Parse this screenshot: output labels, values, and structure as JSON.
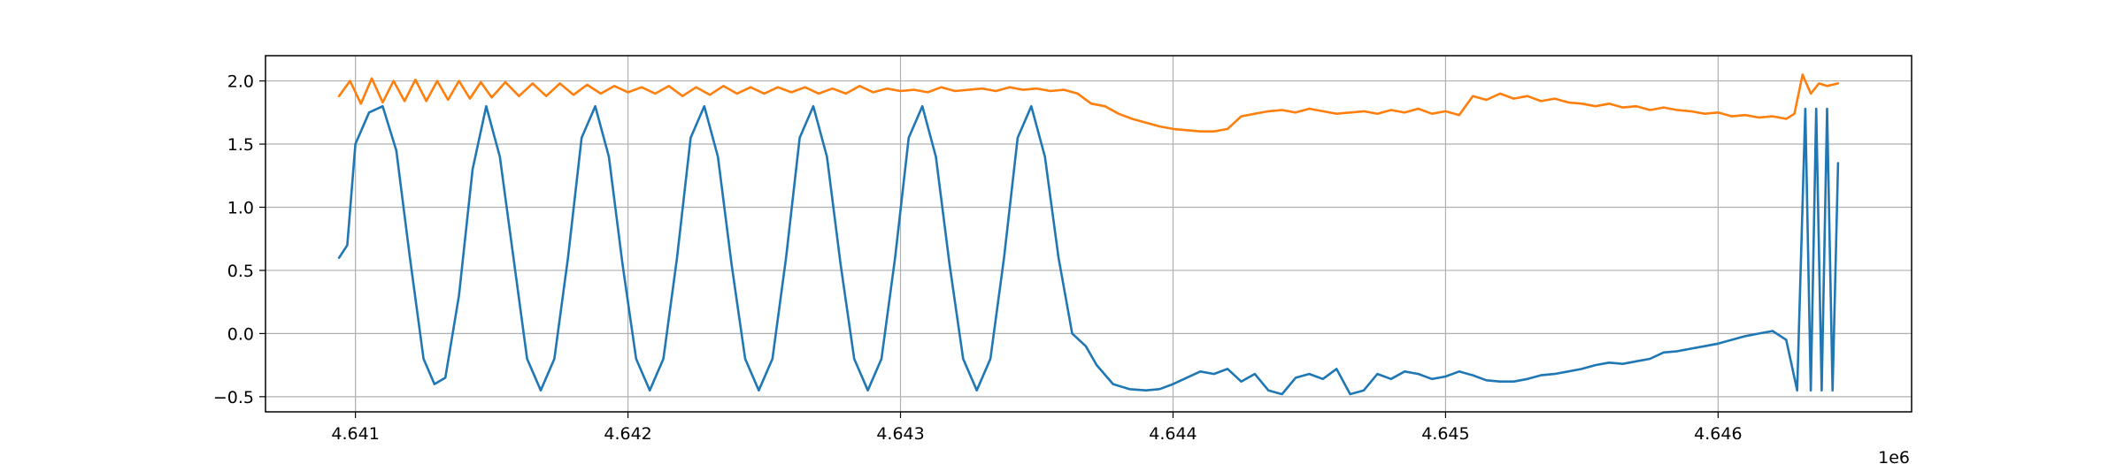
{
  "chart_data": {
    "type": "line",
    "title": "",
    "xlabel": "",
    "ylabel": "",
    "x_offset_text": "1e6",
    "xlim": [
      4640670,
      4646710
    ],
    "ylim": [
      -0.62,
      2.2
    ],
    "grid": true,
    "legend": "none",
    "x_ticks": [
      4641000,
      4642000,
      4643000,
      4644000,
      4645000,
      4646000
    ],
    "x_tick_labels": [
      "4.641",
      "4.642",
      "4.643",
      "4.644",
      "4.645",
      "4.646"
    ],
    "y_ticks": [
      -0.5,
      0.0,
      0.5,
      1.0,
      1.5,
      2.0
    ],
    "y_tick_labels": [
      "−0.5",
      "0.0",
      "0.5",
      "1.0",
      "1.5",
      "2.0"
    ],
    "series": [
      {
        "color": "#1f77b4",
        "x": [
          4640940,
          4640970,
          4641000,
          4641050,
          4641100,
          4641150,
          4641200,
          4641250,
          4641290,
          4641330,
          4641380,
          4641430,
          4641480,
          4641530,
          4641580,
          4641630,
          4641680,
          4641730,
          4641780,
          4641830,
          4641880,
          4641930,
          4641980,
          4642030,
          4642080,
          4642130,
          4642180,
          4642230,
          4642280,
          4642330,
          4642380,
          4642430,
          4642480,
          4642530,
          4642580,
          4642630,
          4642680,
          4642730,
          4642780,
          4642830,
          4642880,
          4642930,
          4642980,
          4643030,
          4643080,
          4643130,
          4643180,
          4643230,
          4643280,
          4643330,
          4643380,
          4643430,
          4643480,
          4643530,
          4643580,
          4643630,
          4643680,
          4643720,
          4643780,
          4643840,
          4643900,
          4643950,
          4644000,
          4644050,
          4644100,
          4644150,
          4644200,
          4644250,
          4644300,
          4644350,
          4644400,
          4644450,
          4644500,
          4644550,
          4644600,
          4644650,
          4644700,
          4644750,
          4644800,
          4644850,
          4644900,
          4644950,
          4645000,
          4645050,
          4645100,
          4645150,
          4645200,
          4645250,
          4645300,
          4645350,
          4645400,
          4645450,
          4645500,
          4645550,
          4645600,
          4645650,
          4645700,
          4645750,
          4645800,
          4645850,
          4645900,
          4645950,
          4646000,
          4646050,
          4646100,
          4646150,
          4646200,
          4646250,
          4646290,
          4646320,
          4646340,
          4646360,
          4646380,
          4646400,
          4646420,
          4646440
        ],
        "values": [
          0.6,
          0.7,
          1.5,
          1.75,
          1.8,
          1.45,
          0.6,
          -0.2,
          -0.4,
          -0.35,
          0.3,
          1.3,
          1.8,
          1.4,
          0.6,
          -0.2,
          -0.45,
          -0.2,
          0.6,
          1.55,
          1.8,
          1.4,
          0.55,
          -0.2,
          -0.45,
          -0.2,
          0.6,
          1.55,
          1.8,
          1.4,
          0.55,
          -0.2,
          -0.45,
          -0.2,
          0.6,
          1.55,
          1.8,
          1.4,
          0.55,
          -0.2,
          -0.45,
          -0.2,
          0.6,
          1.55,
          1.8,
          1.4,
          0.55,
          -0.2,
          -0.45,
          -0.2,
          0.6,
          1.55,
          1.8,
          1.4,
          0.6,
          0.0,
          -0.1,
          -0.25,
          -0.4,
          -0.44,
          -0.45,
          -0.44,
          -0.4,
          -0.35,
          -0.3,
          -0.32,
          -0.28,
          -0.38,
          -0.32,
          -0.45,
          -0.48,
          -0.35,
          -0.32,
          -0.36,
          -0.28,
          -0.48,
          -0.45,
          -0.32,
          -0.36,
          -0.3,
          -0.32,
          -0.36,
          -0.34,
          -0.3,
          -0.33,
          -0.37,
          -0.38,
          -0.38,
          -0.36,
          -0.33,
          -0.32,
          -0.3,
          -0.28,
          -0.25,
          -0.23,
          -0.24,
          -0.22,
          -0.2,
          -0.15,
          -0.14,
          -0.12,
          -0.1,
          -0.08,
          -0.05,
          -0.02,
          0.0,
          0.02,
          -0.05,
          -0.45,
          1.78,
          -0.45,
          1.78,
          -0.45,
          1.78,
          -0.45,
          1.35
        ]
      },
      {
        "color": "#ff7f0e",
        "x": [
          4640940,
          4640980,
          4641020,
          4641060,
          4641100,
          4641140,
          4641180,
          4641220,
          4641260,
          4641300,
          4641340,
          4641380,
          4641420,
          4641460,
          4641500,
          4641550,
          4641600,
          4641650,
          4641700,
          4641750,
          4641800,
          4641850,
          4641900,
          4641950,
          4642000,
          4642050,
          4642100,
          4642150,
          4642200,
          4642250,
          4642300,
          4642350,
          4642400,
          4642450,
          4642500,
          4642550,
          4642600,
          4642650,
          4642700,
          4642750,
          4642800,
          4642850,
          4642900,
          4642950,
          4643000,
          4643050,
          4643100,
          4643150,
          4643200,
          4643250,
          4643300,
          4643350,
          4643400,
          4643450,
          4643500,
          4643550,
          4643600,
          4643650,
          4643700,
          4643750,
          4643800,
          4643850,
          4643900,
          4643950,
          4644000,
          4644050,
          4644100,
          4644150,
          4644200,
          4644250,
          4644300,
          4644350,
          4644400,
          4644450,
          4644500,
          4644550,
          4644600,
          4644650,
          4644700,
          4644750,
          4644800,
          4644850,
          4644900,
          4644950,
          4645000,
          4645050,
          4645100,
          4645150,
          4645200,
          4645250,
          4645300,
          4645350,
          4645400,
          4645450,
          4645500,
          4645550,
          4645600,
          4645650,
          4645700,
          4645750,
          4645800,
          4645850,
          4645900,
          4645950,
          4646000,
          4646050,
          4646100,
          4646150,
          4646200,
          4646250,
          4646280,
          4646310,
          4646340,
          4646370,
          4646400,
          4646440
        ],
        "values": [
          1.88,
          2.0,
          1.82,
          2.02,
          1.83,
          2.0,
          1.84,
          2.01,
          1.84,
          2.0,
          1.85,
          2.0,
          1.86,
          1.99,
          1.87,
          1.99,
          1.88,
          1.98,
          1.88,
          1.98,
          1.89,
          1.97,
          1.9,
          1.96,
          1.91,
          1.95,
          1.9,
          1.96,
          1.88,
          1.95,
          1.89,
          1.96,
          1.9,
          1.95,
          1.9,
          1.95,
          1.91,
          1.95,
          1.9,
          1.94,
          1.9,
          1.96,
          1.91,
          1.94,
          1.92,
          1.93,
          1.91,
          1.95,
          1.92,
          1.93,
          1.94,
          1.92,
          1.95,
          1.93,
          1.94,
          1.92,
          1.93,
          1.9,
          1.82,
          1.8,
          1.74,
          1.7,
          1.67,
          1.64,
          1.62,
          1.61,
          1.6,
          1.6,
          1.62,
          1.72,
          1.74,
          1.76,
          1.77,
          1.75,
          1.78,
          1.76,
          1.74,
          1.75,
          1.76,
          1.74,
          1.77,
          1.75,
          1.78,
          1.74,
          1.76,
          1.73,
          1.88,
          1.85,
          1.9,
          1.86,
          1.88,
          1.84,
          1.86,
          1.83,
          1.82,
          1.8,
          1.82,
          1.79,
          1.8,
          1.77,
          1.79,
          1.77,
          1.76,
          1.74,
          1.75,
          1.72,
          1.73,
          1.71,
          1.72,
          1.7,
          1.74,
          2.05,
          1.9,
          1.98,
          1.96,
          1.98
        ]
      }
    ]
  }
}
